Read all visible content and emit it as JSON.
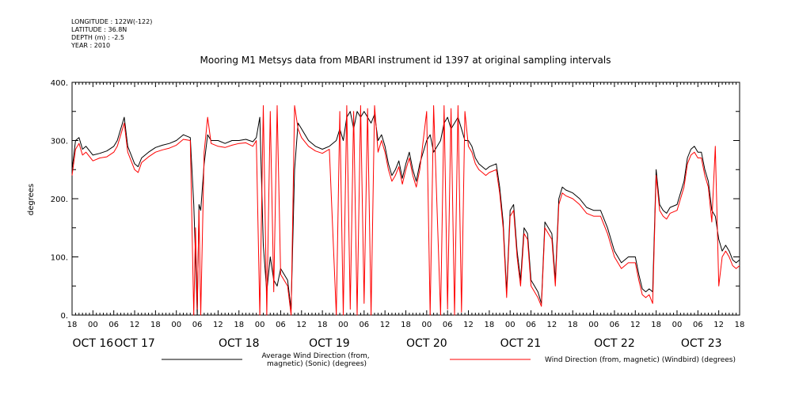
{
  "meta": [
    "LONGITUDE : 122W(-122)",
    "LATITUDE : 36.8N",
    "DEPTH (m) : -2.5",
    "YEAR : 2010"
  ],
  "chart_data": {
    "type": "line",
    "title": "Mooring M1 Metsys data from MBARI instrument id 1397 at original sampling intervals",
    "xlabel": "",
    "ylabel": "degrees",
    "ylim": [
      0,
      400
    ],
    "yticks": [
      0,
      100,
      200,
      300,
      400
    ],
    "ytick_labels": [
      "0.",
      "100.",
      "200.",
      "300.",
      "400."
    ],
    "x_units": "hours from OCT 15 18:00 (2010)",
    "xlim": [
      0,
      192
    ],
    "hour_ticks": [
      "18",
      "00",
      "06",
      "12",
      "18",
      "00",
      "06",
      "12",
      "18",
      "00",
      "06",
      "12",
      "18",
      "00",
      "06",
      "12",
      "18",
      "00",
      "06",
      "12",
      "18",
      "00",
      "06",
      "12",
      "18",
      "00",
      "06",
      "12",
      "18",
      "00",
      "06",
      "12",
      "18"
    ],
    "date_labels": [
      {
        "text": "OCT 16",
        "hour": 6
      },
      {
        "text": "OCT 17",
        "hour": 18
      },
      {
        "text": "OCT 18",
        "hour": 48
      },
      {
        "text": "OCT 19",
        "hour": 74
      },
      {
        "text": "OCT 20",
        "hour": 102
      },
      {
        "text": "OCT 21",
        "hour": 129
      },
      {
        "text": "OCT 22",
        "hour": 156
      },
      {
        "text": "OCT 23",
        "hour": 181
      }
    ],
    "grid": false,
    "legend_position": "bottom",
    "series": [
      {
        "name": "Average Wind Direction (from, magnetic) (Sonic) (degrees)",
        "color": "#000000",
        "points": [
          [
            0,
            250
          ],
          [
            1,
            300
          ],
          [
            2,
            305
          ],
          [
            3,
            285
          ],
          [
            4,
            290
          ],
          [
            6,
            275
          ],
          [
            8,
            278
          ],
          [
            10,
            282
          ],
          [
            12,
            290
          ],
          [
            13,
            300
          ],
          [
            14,
            320
          ],
          [
            15,
            340
          ],
          [
            16,
            290
          ],
          [
            18,
            260
          ],
          [
            19,
            255
          ],
          [
            20,
            270
          ],
          [
            22,
            280
          ],
          [
            24,
            288
          ],
          [
            26,
            292
          ],
          [
            28,
            295
          ],
          [
            30,
            300
          ],
          [
            32,
            310
          ],
          [
            34,
            305
          ],
          [
            35,
            190
          ],
          [
            35.5,
            100
          ],
          [
            36,
            0
          ],
          [
            36.5,
            190
          ],
          [
            37,
            180
          ],
          [
            38,
            260
          ],
          [
            39,
            310
          ],
          [
            40,
            300
          ],
          [
            42,
            300
          ],
          [
            44,
            295
          ],
          [
            46,
            300
          ],
          [
            48,
            300
          ],
          [
            50,
            302
          ],
          [
            52,
            298
          ],
          [
            53,
            305
          ],
          [
            54,
            340
          ],
          [
            55,
            120
          ],
          [
            56,
            40
          ],
          [
            57,
            100
          ],
          [
            58,
            60
          ],
          [
            59,
            50
          ],
          [
            60,
            80
          ],
          [
            62,
            60
          ],
          [
            63,
            10
          ],
          [
            64,
            250
          ],
          [
            65,
            330
          ],
          [
            66,
            320
          ],
          [
            68,
            300
          ],
          [
            70,
            290
          ],
          [
            72,
            285
          ],
          [
            74,
            290
          ],
          [
            76,
            300
          ],
          [
            77,
            320
          ],
          [
            78,
            300
          ],
          [
            79,
            340
          ],
          [
            80,
            350
          ],
          [
            81,
            320
          ],
          [
            82,
            350
          ],
          [
            83,
            340
          ],
          [
            84,
            350
          ],
          [
            85,
            340
          ],
          [
            86,
            330
          ],
          [
            87,
            345
          ],
          [
            88,
            300
          ],
          [
            89,
            310
          ],
          [
            90,
            290
          ],
          [
            91,
            260
          ],
          [
            92,
            240
          ],
          [
            93,
            250
          ],
          [
            94,
            265
          ],
          [
            95,
            235
          ],
          [
            96,
            260
          ],
          [
            97,
            280
          ],
          [
            98,
            250
          ],
          [
            99,
            230
          ],
          [
            100,
            260
          ],
          [
            102,
            300
          ],
          [
            103,
            310
          ],
          [
            104,
            280
          ],
          [
            106,
            300
          ],
          [
            107,
            330
          ],
          [
            108,
            340
          ],
          [
            109,
            320
          ],
          [
            110,
            330
          ],
          [
            111,
            340
          ],
          [
            112,
            320
          ],
          [
            113,
            300
          ],
          [
            114,
            300
          ],
          [
            115,
            290
          ],
          [
            116,
            270
          ],
          [
            117,
            260
          ],
          [
            118,
            255
          ],
          [
            119,
            250
          ],
          [
            120,
            255
          ],
          [
            122,
            260
          ],
          [
            123,
            220
          ],
          [
            124,
            160
          ],
          [
            125,
            40
          ],
          [
            126,
            180
          ],
          [
            127,
            190
          ],
          [
            128,
            110
          ],
          [
            129,
            60
          ],
          [
            130,
            150
          ],
          [
            131,
            140
          ],
          [
            132,
            60
          ],
          [
            133,
            50
          ],
          [
            134,
            40
          ],
          [
            135,
            20
          ],
          [
            136,
            160
          ],
          [
            137,
            150
          ],
          [
            138,
            140
          ],
          [
            139,
            60
          ],
          [
            140,
            200
          ],
          [
            141,
            220
          ],
          [
            142,
            215
          ],
          [
            144,
            210
          ],
          [
            146,
            200
          ],
          [
            148,
            185
          ],
          [
            150,
            180
          ],
          [
            152,
            180
          ],
          [
            154,
            150
          ],
          [
            156,
            110
          ],
          [
            158,
            90
          ],
          [
            160,
            100
          ],
          [
            162,
            100
          ],
          [
            163,
            70
          ],
          [
            164,
            45
          ],
          [
            165,
            40
          ],
          [
            166,
            45
          ],
          [
            167,
            40
          ],
          [
            168,
            250
          ],
          [
            169,
            190
          ],
          [
            170,
            180
          ],
          [
            171,
            175
          ],
          [
            172,
            185
          ],
          [
            174,
            190
          ],
          [
            175,
            210
          ],
          [
            176,
            230
          ],
          [
            177,
            270
          ],
          [
            178,
            285
          ],
          [
            179,
            290
          ],
          [
            180,
            280
          ],
          [
            181,
            280
          ],
          [
            182,
            250
          ],
          [
            183,
            230
          ],
          [
            184,
            180
          ],
          [
            185,
            170
          ],
          [
            186,
            130
          ],
          [
            187,
            110
          ],
          [
            188,
            120
          ],
          [
            189,
            110
          ],
          [
            190,
            95
          ],
          [
            191,
            90
          ],
          [
            192,
            95
          ]
        ]
      },
      {
        "name": "Wind Direction (from, magnetic) (Windbird) (degrees)",
        "color": "#ff0000",
        "points": [
          [
            0,
            240
          ],
          [
            1,
            285
          ],
          [
            2,
            295
          ],
          [
            3,
            275
          ],
          [
            4,
            280
          ],
          [
            6,
            265
          ],
          [
            8,
            270
          ],
          [
            10,
            272
          ],
          [
            12,
            280
          ],
          [
            13,
            290
          ],
          [
            14,
            310
          ],
          [
            15,
            330
          ],
          [
            16,
            280
          ],
          [
            18,
            250
          ],
          [
            19,
            245
          ],
          [
            20,
            262
          ],
          [
            22,
            272
          ],
          [
            24,
            280
          ],
          [
            26,
            284
          ],
          [
            28,
            287
          ],
          [
            30,
            292
          ],
          [
            32,
            302
          ],
          [
            34,
            300
          ],
          [
            35,
            0
          ],
          [
            35.5,
            150
          ],
          [
            36,
            10
          ],
          [
            36.5,
            180
          ],
          [
            37,
            0
          ],
          [
            38,
            280
          ],
          [
            39,
            340
          ],
          [
            40,
            295
          ],
          [
            42,
            290
          ],
          [
            44,
            288
          ],
          [
            46,
            292
          ],
          [
            48,
            295
          ],
          [
            50,
            296
          ],
          [
            52,
            290
          ],
          [
            53,
            300
          ],
          [
            54,
            0
          ],
          [
            55,
            360
          ],
          [
            56,
            0
          ],
          [
            57,
            350
          ],
          [
            58,
            40
          ],
          [
            59,
            360
          ],
          [
            60,
            70
          ],
          [
            62,
            50
          ],
          [
            63,
            0
          ],
          [
            64,
            360
          ],
          [
            65,
            320
          ],
          [
            66,
            305
          ],
          [
            68,
            290
          ],
          [
            70,
            282
          ],
          [
            72,
            278
          ],
          [
            74,
            285
          ],
          [
            76,
            0
          ],
          [
            77,
            350
          ],
          [
            78,
            0
          ],
          [
            79,
            360
          ],
          [
            80,
            10
          ],
          [
            81,
            350
          ],
          [
            82,
            0
          ],
          [
            83,
            360
          ],
          [
            84,
            20
          ],
          [
            85,
            355
          ],
          [
            86,
            0
          ],
          [
            87,
            360
          ],
          [
            88,
            280
          ],
          [
            89,
            300
          ],
          [
            90,
            280
          ],
          [
            91,
            250
          ],
          [
            92,
            230
          ],
          [
            93,
            240
          ],
          [
            94,
            255
          ],
          [
            95,
            225
          ],
          [
            96,
            250
          ],
          [
            97,
            270
          ],
          [
            98,
            240
          ],
          [
            99,
            220
          ],
          [
            100,
            250
          ],
          [
            102,
            350
          ],
          [
            103,
            0
          ],
          [
            104,
            360
          ],
          [
            106,
            0
          ],
          [
            107,
            360
          ],
          [
            108,
            10
          ],
          [
            109,
            355
          ],
          [
            110,
            0
          ],
          [
            111,
            360
          ],
          [
            112,
            5
          ],
          [
            113,
            350
          ],
          [
            114,
            290
          ],
          [
            115,
            280
          ],
          [
            116,
            260
          ],
          [
            117,
            250
          ],
          [
            118,
            245
          ],
          [
            119,
            240
          ],
          [
            120,
            245
          ],
          [
            122,
            250
          ],
          [
            123,
            210
          ],
          [
            124,
            150
          ],
          [
            125,
            30
          ],
          [
            126,
            170
          ],
          [
            127,
            180
          ],
          [
            128,
            100
          ],
          [
            129,
            50
          ],
          [
            130,
            140
          ],
          [
            131,
            130
          ],
          [
            132,
            50
          ],
          [
            133,
            40
          ],
          [
            134,
            30
          ],
          [
            135,
            15
          ],
          [
            136,
            150
          ],
          [
            137,
            140
          ],
          [
            138,
            130
          ],
          [
            139,
            50
          ],
          [
            140,
            190
          ],
          [
            141,
            210
          ],
          [
            142,
            205
          ],
          [
            144,
            200
          ],
          [
            146,
            190
          ],
          [
            148,
            175
          ],
          [
            150,
            170
          ],
          [
            152,
            170
          ],
          [
            154,
            140
          ],
          [
            156,
            100
          ],
          [
            158,
            80
          ],
          [
            160,
            90
          ],
          [
            162,
            90
          ],
          [
            163,
            60
          ],
          [
            164,
            35
          ],
          [
            165,
            30
          ],
          [
            166,
            35
          ],
          [
            167,
            20
          ],
          [
            168,
            240
          ],
          [
            169,
            180
          ],
          [
            170,
            170
          ],
          [
            171,
            165
          ],
          [
            172,
            175
          ],
          [
            174,
            180
          ],
          [
            175,
            200
          ],
          [
            176,
            220
          ],
          [
            177,
            260
          ],
          [
            178,
            275
          ],
          [
            179,
            280
          ],
          [
            180,
            270
          ],
          [
            181,
            270
          ],
          [
            182,
            240
          ],
          [
            183,
            220
          ],
          [
            184,
            160
          ],
          [
            185,
            290
          ],
          [
            186,
            50
          ],
          [
            187,
            100
          ],
          [
            188,
            110
          ],
          [
            189,
            100
          ],
          [
            190,
            85
          ],
          [
            191,
            80
          ],
          [
            192,
            85
          ]
        ]
      }
    ]
  }
}
